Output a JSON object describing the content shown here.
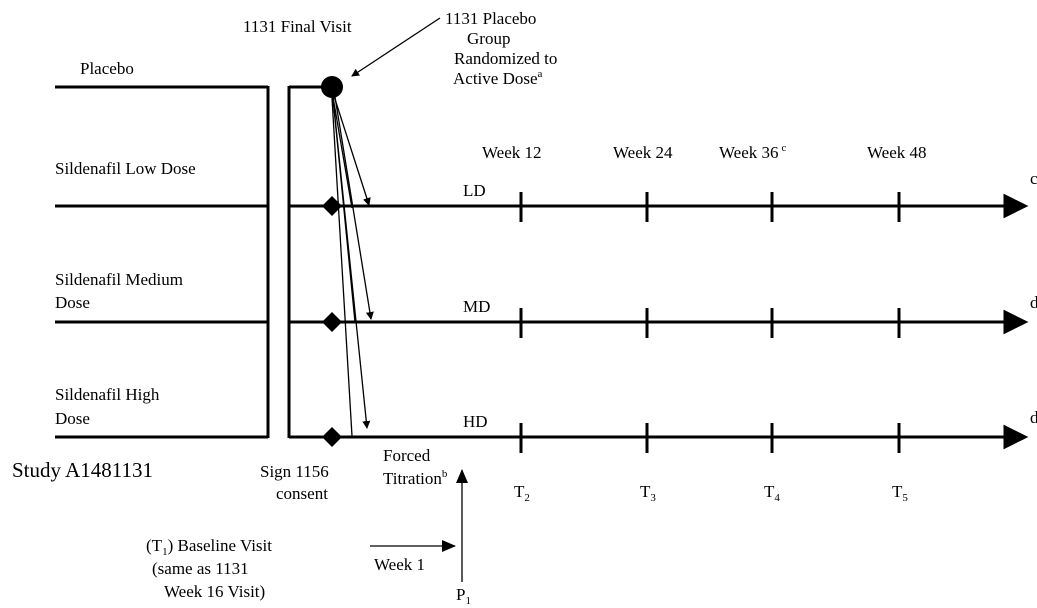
{
  "labels": {
    "placebo": "Placebo",
    "final_visit": "1131 Final Visit",
    "randomized": {
      "lines": [
        "1131 Placebo",
        "Group",
        "Randomized to",
        "Active Dose"
      ],
      "note": "a"
    },
    "low_dose": "Sildenafil Low Dose",
    "medium_dose": [
      "Sildenafil Medium",
      "Dose"
    ],
    "high_dose": [
      "Sildenafil High",
      "Dose"
    ],
    "study": "Study A1481131",
    "consent": [
      "Sign 1156",
      "consent"
    ],
    "titration": {
      "lines": [
        "Forced",
        "Titration"
      ],
      "note": "b"
    },
    "baseline": {
      "open": "(",
      "symbol": "T",
      "sub": "1",
      "rest": ") Baseline Visit",
      "lines": [
        "(same as 1131",
        "Week 16 Visit)"
      ]
    },
    "week1": "Week 1",
    "p1": {
      "symbol": "P",
      "sub": "1"
    }
  },
  "weeks": [
    {
      "text": "Week 12"
    },
    {
      "text": "Week 24"
    },
    {
      "text": "Week 36",
      "note": "c"
    },
    {
      "text": "Week 48"
    }
  ],
  "arms": [
    {
      "text": "LD",
      "end_note": "c"
    },
    {
      "text": "MD",
      "end_note": "d"
    },
    {
      "text": "HD",
      "end_note": "d"
    }
  ],
  "timepoints": [
    {
      "symbol": "T",
      "sub": "2"
    },
    {
      "symbol": "T",
      "sub": "3"
    },
    {
      "symbol": "T",
      "sub": "4"
    },
    {
      "symbol": "T",
      "sub": "5"
    }
  ]
}
